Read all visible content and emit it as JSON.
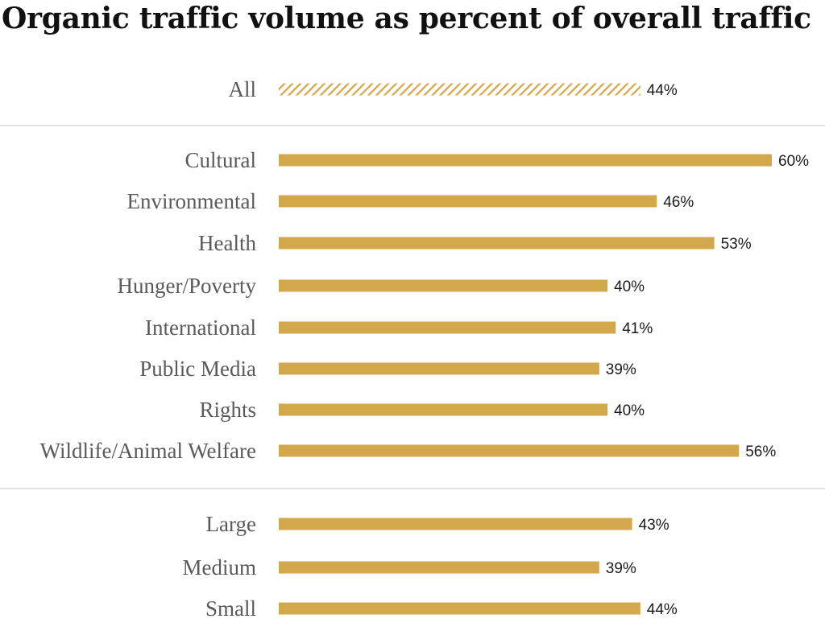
{
  "title": "Organic traffic volume as percent of overall traffic",
  "colors": {
    "bar": "#d3a74b",
    "hatch_line": "#d3a74b",
    "label": "#5a5a5a",
    "value": "#1a1a1a",
    "divider": "#d9d9d9"
  },
  "chart_data": {
    "type": "bar",
    "orientation": "horizontal",
    "title": "Organic traffic volume as percent of overall traffic",
    "xlabel": "",
    "ylabel": "",
    "xlim": [
      0,
      60
    ],
    "grid": false,
    "groups": [
      {
        "categories": [
          "All"
        ],
        "values": [
          44
        ],
        "value_labels": [
          "44%"
        ],
        "style": "hatched"
      },
      {
        "categories": [
          "Cultural",
          "Environmental",
          "Health",
          "Hunger/Poverty",
          "International",
          "Public Media",
          "Rights",
          "Wildlife/Animal Welfare"
        ],
        "values": [
          60,
          46,
          53,
          40,
          41,
          39,
          40,
          56
        ],
        "value_labels": [
          "60%",
          "46%",
          "53%",
          "40%",
          "41%",
          "39%",
          "40%",
          "56%"
        ],
        "style": "solid"
      },
      {
        "categories": [
          "Large",
          "Medium",
          "Small"
        ],
        "values": [
          43,
          39,
          44
        ],
        "value_labels": [
          "43%",
          "39%",
          "44%"
        ],
        "style": "solid"
      }
    ]
  }
}
